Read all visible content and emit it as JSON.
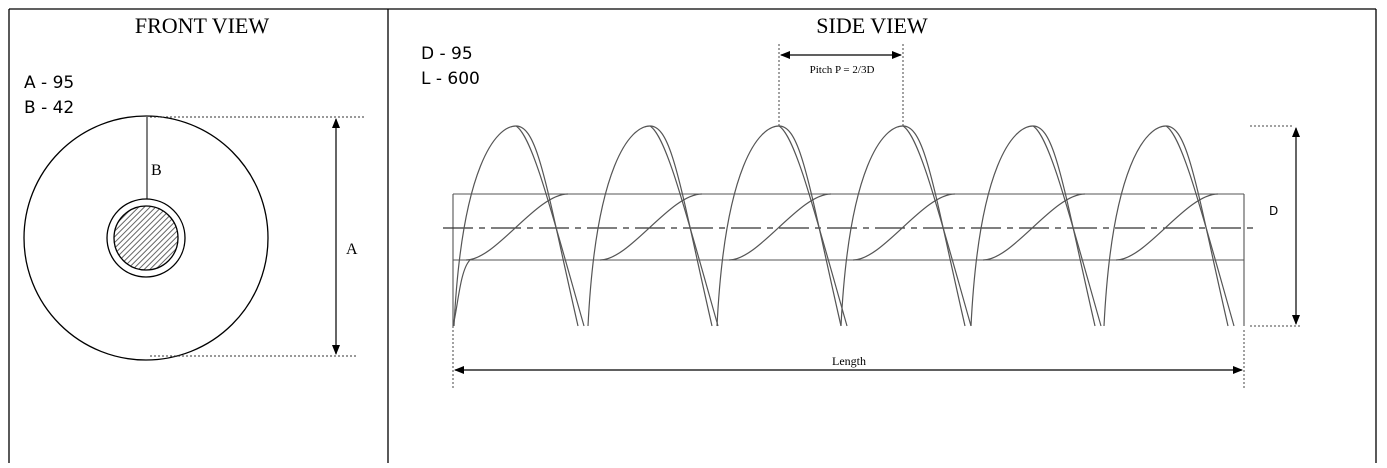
{
  "front": {
    "title": "FRONT VIEW",
    "dim_a": "A - 95",
    "dim_b": "B -  42",
    "label_b": "B",
    "label_a": "A"
  },
  "side": {
    "title": "SIDE VIEW",
    "dim_d": "D - 95",
    "dim_l": "L -  600",
    "pitch": "Pitch P = 2/3D",
    "label_d": "D",
    "length": "Length"
  },
  "colors": {
    "line": "#000000",
    "drawing": "#555555",
    "hatch": "#777777"
  }
}
